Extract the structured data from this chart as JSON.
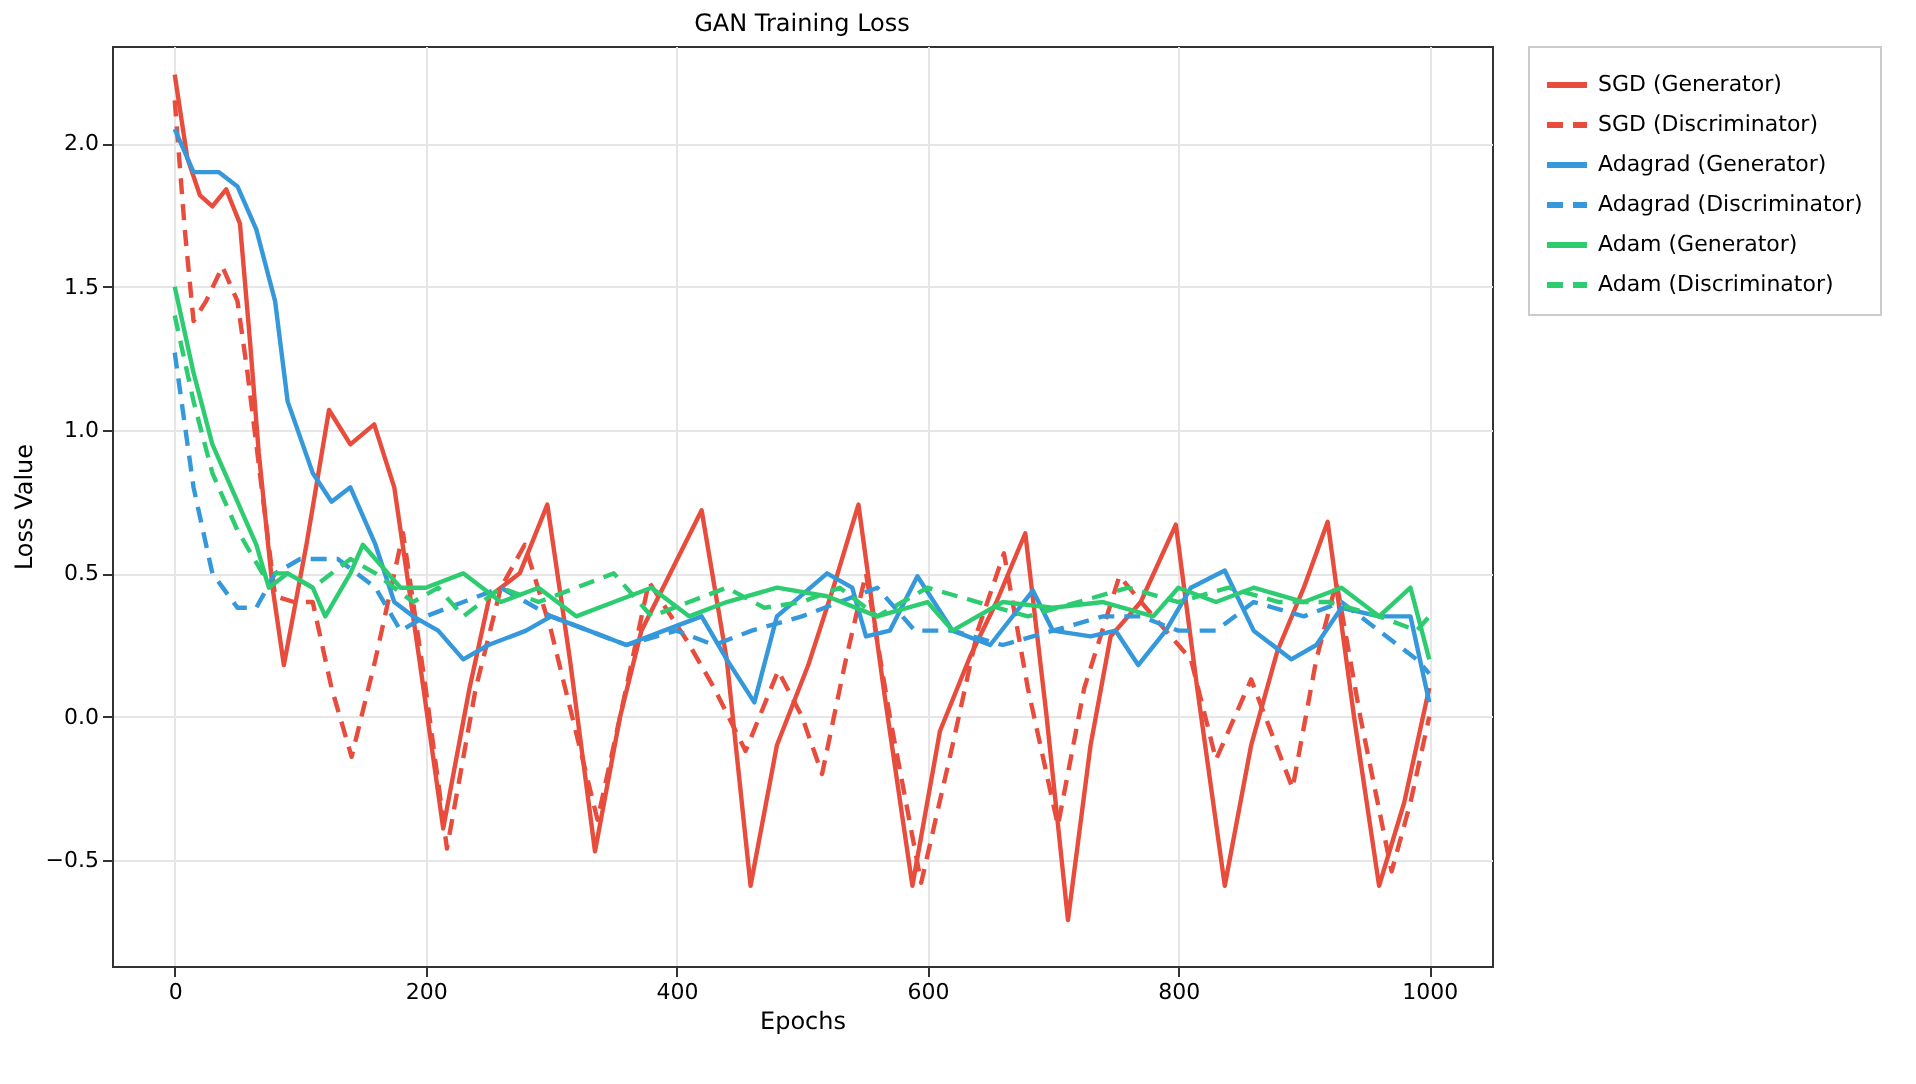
{
  "chart_data": {
    "type": "line",
    "title": "GAN Training Loss",
    "xlabel": "Epochs",
    "ylabel": "Loss Value",
    "xlim": [
      -50,
      1050
    ],
    "ylim": [
      -0.87,
      2.34
    ],
    "xticks": [
      0,
      200,
      400,
      600,
      800,
      1000
    ],
    "yticks": [
      {
        "value": -0.5,
        "label": "−0.5"
      },
      {
        "value": 0,
        "label": "0.0"
      },
      {
        "value": 0.5,
        "label": "0.5"
      },
      {
        "value": 1,
        "label": "1.0"
      },
      {
        "value": 1.5,
        "label": "1.5"
      },
      {
        "value": 2,
        "label": "2.0"
      }
    ],
    "grid": true,
    "legend": "right",
    "marker": "none",
    "series": [
      {
        "name": "SGD (Generator)",
        "color": "#e74c3c",
        "line_style": "solid",
        "x": [
          0,
          10,
          20,
          30,
          41,
          52,
          60,
          67,
          78,
          87,
          105,
          123,
          140,
          159,
          175,
          195,
          214,
          235,
          251,
          275,
          297,
          315,
          335,
          355,
          372,
          395,
          420,
          440,
          459,
          480,
          505,
          525,
          545,
          565,
          588,
          610,
          634,
          655,
          678,
          695,
          712,
          730,
          746,
          770,
          798,
          815,
          837,
          858,
          879,
          900,
          919,
          940,
          960,
          980,
          1000
        ],
        "values": [
          2.24,
          1.95,
          1.82,
          1.78,
          1.84,
          1.72,
          1.31,
          0.92,
          0.45,
          0.18,
          0.6,
          1.07,
          0.95,
          1.02,
          0.8,
          0.2,
          -0.39,
          0.1,
          0.42,
          0.5,
          0.74,
          0.2,
          -0.47,
          0.0,
          0.3,
          0.5,
          0.72,
          0.2,
          -0.59,
          -0.1,
          0.18,
          0.45,
          0.74,
          0.1,
          -0.59,
          -0.05,
          0.21,
          0.4,
          0.64,
          0.0,
          -0.71,
          -0.1,
          0.28,
          0.4,
          0.67,
          0.1,
          -0.59,
          -0.1,
          0.23,
          0.45,
          0.68,
          0.0,
          -0.59,
          -0.3,
          0.1
        ]
      },
      {
        "name": "SGD (Discriminator)",
        "color": "#e74c3c",
        "line_style": "dashed",
        "x": [
          0,
          8,
          15,
          25,
          38,
          50,
          58,
          67,
          80,
          95,
          110,
          125,
          141,
          160,
          182,
          200,
          217,
          240,
          260,
          279,
          300,
          337,
          355,
          378,
          409,
          430,
          455,
          481,
          500,
          516,
          535,
          551,
          570,
          595,
          620,
          640,
          661,
          680,
          704,
          725,
          753,
          780,
          810,
          830,
          858,
          891,
          910,
          926,
          945,
          970,
          985,
          1000
        ],
        "values": [
          2.15,
          1.7,
          1.38,
          1.45,
          1.57,
          1.45,
          1.2,
          0.88,
          0.42,
          0.4,
          0.4,
          0.1,
          -0.14,
          0.2,
          0.64,
          0.1,
          -0.46,
          0.1,
          0.45,
          0.6,
          0.3,
          -0.36,
          0.0,
          0.47,
          0.26,
          0.1,
          -0.12,
          0.16,
          0.0,
          -0.2,
          0.2,
          0.5,
          0.0,
          -0.58,
          -0.1,
          0.3,
          0.57,
          0.1,
          -0.38,
          0.1,
          0.49,
          0.35,
          0.2,
          -0.15,
          0.13,
          -0.25,
          0.2,
          0.47,
          0.0,
          -0.54,
          -0.3,
          0.0
        ]
      },
      {
        "name": "Adagrad (Generator)",
        "color": "#3498db",
        "line_style": "solid",
        "x": [
          0,
          15,
          35,
          50,
          65,
          80,
          90,
          110,
          125,
          140,
          160,
          175,
          190,
          210,
          230,
          250,
          280,
          300,
          330,
          360,
          390,
          420,
          440,
          462,
          480,
          520,
          540,
          551,
          570,
          592,
          620,
          650,
          684,
          700,
          730,
          750,
          768,
          790,
          810,
          837,
          860,
          890,
          910,
          930,
          960,
          985,
          1000
        ],
        "values": [
          2.05,
          1.9,
          1.9,
          1.85,
          1.7,
          1.45,
          1.1,
          0.85,
          0.75,
          0.8,
          0.6,
          0.4,
          0.35,
          0.3,
          0.2,
          0.25,
          0.3,
          0.35,
          0.3,
          0.25,
          0.3,
          0.35,
          0.2,
          0.05,
          0.35,
          0.5,
          0.45,
          0.28,
          0.3,
          0.49,
          0.3,
          0.25,
          0.44,
          0.3,
          0.28,
          0.3,
          0.18,
          0.3,
          0.45,
          0.51,
          0.3,
          0.2,
          0.25,
          0.38,
          0.35,
          0.35,
          0.05
        ]
      },
      {
        "name": "Adagrad (Discriminator)",
        "color": "#3498db",
        "line_style": "dashed",
        "x": [
          0,
          15,
          30,
          50,
          65,
          80,
          100,
          130,
          160,
          180,
          200,
          230,
          260,
          300,
          330,
          360,
          400,
          430,
          460,
          500,
          530,
          560,
          590,
          620,
          660,
          700,
          740,
          770,
          800,
          830,
          860,
          900,
          930,
          960,
          990,
          1000
        ],
        "values": [
          1.27,
          0.8,
          0.5,
          0.38,
          0.38,
          0.5,
          0.55,
          0.55,
          0.45,
          0.3,
          0.35,
          0.4,
          0.45,
          0.35,
          0.3,
          0.25,
          0.3,
          0.25,
          0.3,
          0.35,
          0.4,
          0.45,
          0.3,
          0.3,
          0.25,
          0.3,
          0.35,
          0.35,
          0.3,
          0.3,
          0.4,
          0.35,
          0.4,
          0.3,
          0.2,
          0.15
        ]
      },
      {
        "name": "Adam (Generator)",
        "color": "#2ecc71",
        "line_style": "solid",
        "x": [
          0,
          15,
          30,
          50,
          65,
          75,
          90,
          110,
          120,
          140,
          150,
          180,
          200,
          230,
          260,
          290,
          320,
          350,
          380,
          410,
          440,
          480,
          520,
          560,
          600,
          620,
          660,
          700,
          740,
          780,
          800,
          830,
          860,
          900,
          930,
          960,
          985,
          1000
        ],
        "values": [
          1.5,
          1.2,
          0.95,
          0.75,
          0.6,
          0.45,
          0.5,
          0.45,
          0.35,
          0.5,
          0.6,
          0.45,
          0.45,
          0.5,
          0.4,
          0.45,
          0.35,
          0.4,
          0.45,
          0.35,
          0.4,
          0.45,
          0.42,
          0.35,
          0.4,
          0.3,
          0.4,
          0.38,
          0.4,
          0.35,
          0.45,
          0.4,
          0.45,
          0.4,
          0.45,
          0.35,
          0.45,
          0.2
        ]
      },
      {
        "name": "Adam (Discriminator)",
        "color": "#2ecc71",
        "line_style": "dashed",
        "x": [
          0,
          15,
          30,
          50,
          70,
          90,
          110,
          140,
          160,
          190,
          210,
          230,
          260,
          290,
          320,
          350,
          380,
          410,
          440,
          470,
          500,
          530,
          560,
          600,
          640,
          680,
          720,
          760,
          800,
          840,
          880,
          920,
          960,
          990,
          1000
        ],
        "values": [
          1.4,
          1.1,
          0.85,
          0.65,
          0.5,
          0.5,
          0.45,
          0.55,
          0.5,
          0.4,
          0.45,
          0.35,
          0.45,
          0.4,
          0.45,
          0.5,
          0.35,
          0.4,
          0.45,
          0.38,
          0.4,
          0.45,
          0.35,
          0.45,
          0.4,
          0.35,
          0.4,
          0.45,
          0.4,
          0.45,
          0.4,
          0.4,
          0.35,
          0.3,
          0.35
        ]
      }
    ]
  }
}
